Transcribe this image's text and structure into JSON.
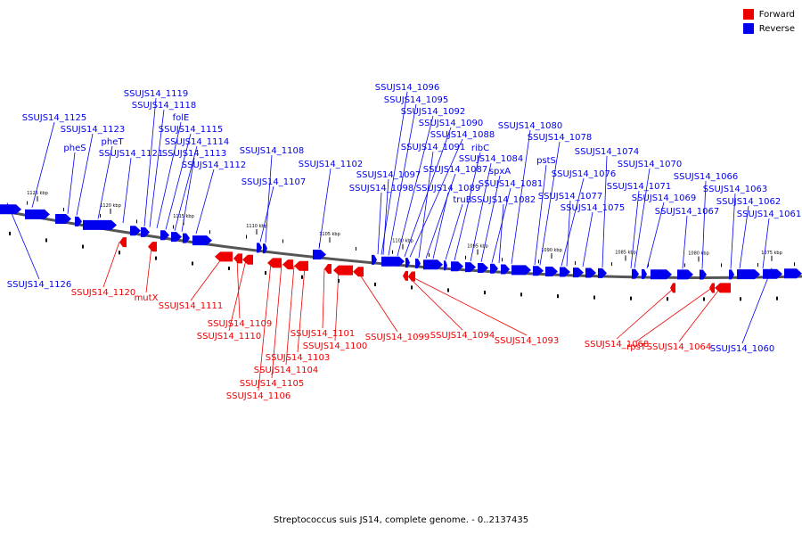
{
  "colors": {
    "forward": "#ee0000",
    "reverse": "#0000ee",
    "backbone": "#555555"
  },
  "legend": {
    "forward_label": "Forward",
    "reverse_label": "Reverse"
  },
  "footer": "Streptococcus suis JS14, complete genome. - 0..2137435",
  "ticks": [
    "1125 kbp",
    "1120 kbp",
    "1115 kbp",
    "1110 kbp",
    "1105 kbp",
    "1100 kbp",
    "1095 kbp",
    "1090 kbp",
    "1085 kbp",
    "1080 kbp",
    "1075 kbp"
  ],
  "reverse_genes": [
    "SSUJS14_1126",
    "SSUJS14_1125",
    "SSUJS14_1123",
    "pheS",
    "pheT",
    "SSUJS14_1121",
    "SSUJS14_1119",
    "SSUJS14_1118",
    "folE",
    "SSUJS14_1115",
    "SSUJS14_1114",
    "SSUJS14_1113",
    "SSUJS14_1112",
    "SSUJS14_1108",
    "SSUJS14_1107",
    "SSUJS14_1102",
    "SSUJS14_1096",
    "SSUJS14_1095",
    "SSUJS14_1092",
    "SSUJS14_1090",
    "SSUJS14_1088",
    "SSUJS14_1091",
    "SSUJS14_1087",
    "SSUJS14_1097",
    "SSUJS14_1098",
    "SSUJS14_1089",
    "truB",
    "ribC",
    "SSUJS14_1084",
    "spxA",
    "SSUJS14_1081",
    "SSUJS14_1082",
    "SSUJS14_1080",
    "SSUJS14_1078",
    "pstS",
    "SSUJS14_1076",
    "SSUJS14_1077",
    "SSUJS14_1075",
    "SSUJS14_1074",
    "SSUJS14_1070",
    "SSUJS14_1071",
    "SSUJS14_1069",
    "SSUJS14_1067",
    "SSUJS14_1066",
    "SSUJS14_1063",
    "SSUJS14_1062",
    "SSUJS14_1061",
    "SSUJS14_1060"
  ],
  "forward_genes": [
    "SSUJS14_1120",
    "mutX",
    "SSUJS14_1111",
    "SSUJS14_1109",
    "SSUJS14_1110",
    "SSUJS14_1101",
    "SSUJS14_1100",
    "SSUJS14_1103",
    "SSUJS14_1104",
    "SSUJS14_1105",
    "SSUJS14_1106",
    "SSUJS14_1099",
    "SSUJS14_1094",
    "SSUJS14_1093",
    "SSUJS14_1068",
    "rpsT",
    "SSUJS14_1064"
  ]
}
